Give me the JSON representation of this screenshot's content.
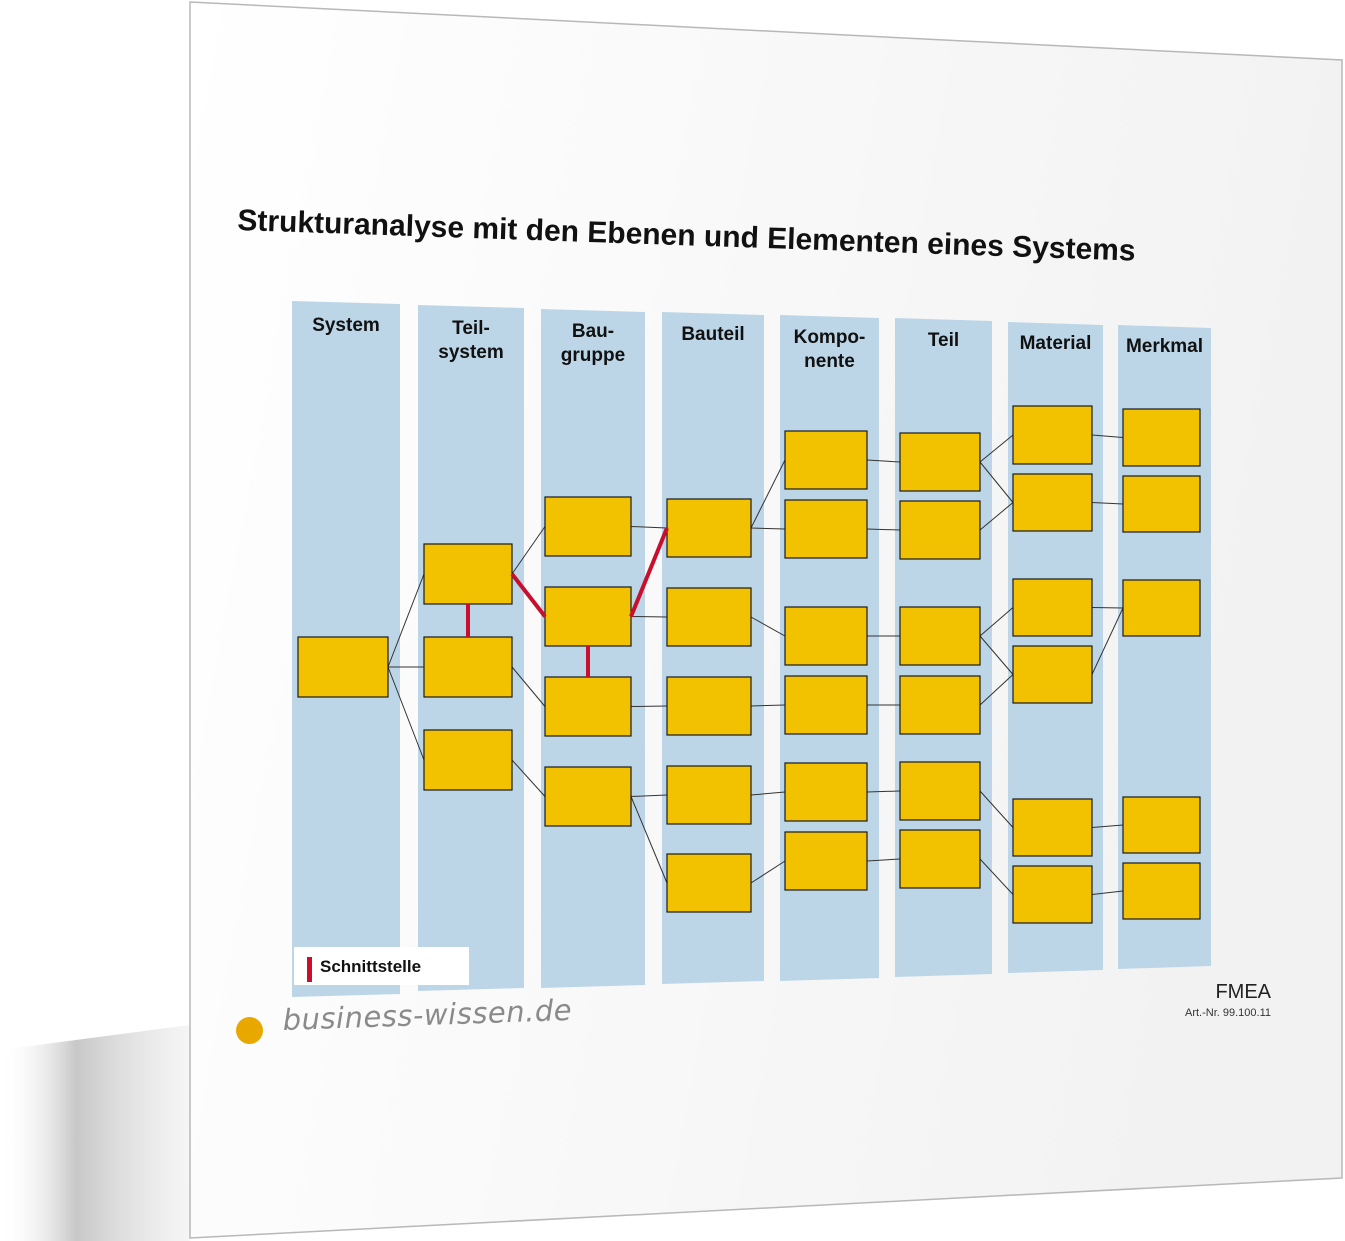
{
  "title": "Strukturanalyse mit den Ebenen und Elementen eines Systems",
  "columns": [
    {
      "id": "system",
      "label": "System"
    },
    {
      "id": "teilsystem",
      "label": "Teil-\nsystem"
    },
    {
      "id": "baugruppe",
      "label": "Bau-\ngruppe"
    },
    {
      "id": "bauteil",
      "label": "Bauteil"
    },
    {
      "id": "komponente",
      "label": "Kompo-\nnente"
    },
    {
      "id": "teil",
      "label": "Teil"
    },
    {
      "id": "material",
      "label": "Material"
    },
    {
      "id": "merkmal",
      "label": "Merkmal"
    }
  ],
  "legend": {
    "label": "Schnittstelle",
    "color": "#c8102e"
  },
  "footer": {
    "product": "FMEA",
    "article": "Art.-Nr. 99.100.11",
    "brand": "business-wissen.de",
    "brand_color": "#e8a800"
  },
  "colors": {
    "column_fill": "#bcd6e8",
    "box_fill": "#f2c200",
    "box_stroke": "#1a1a1a",
    "interface": "#c8102e"
  },
  "tree": {
    "nodes": [
      {
        "id": "S1",
        "column": "system"
      },
      {
        "id": "T1",
        "column": "teilsystem"
      },
      {
        "id": "T2",
        "column": "teilsystem"
      },
      {
        "id": "T3",
        "column": "teilsystem"
      },
      {
        "id": "B1",
        "column": "baugruppe"
      },
      {
        "id": "B2",
        "column": "baugruppe"
      },
      {
        "id": "B3",
        "column": "baugruppe"
      },
      {
        "id": "B4",
        "column": "baugruppe"
      },
      {
        "id": "BT1",
        "column": "bauteil"
      },
      {
        "id": "BT2",
        "column": "bauteil"
      },
      {
        "id": "BT3",
        "column": "bauteil"
      },
      {
        "id": "BT4",
        "column": "bauteil"
      },
      {
        "id": "BT5",
        "column": "bauteil"
      },
      {
        "id": "K1",
        "column": "komponente"
      },
      {
        "id": "K2",
        "column": "komponente"
      },
      {
        "id": "K3",
        "column": "komponente"
      },
      {
        "id": "K4",
        "column": "komponente"
      },
      {
        "id": "K5",
        "column": "komponente"
      },
      {
        "id": "K6",
        "column": "komponente"
      },
      {
        "id": "P1",
        "column": "teil"
      },
      {
        "id": "P2",
        "column": "teil"
      },
      {
        "id": "P3",
        "column": "teil"
      },
      {
        "id": "P4",
        "column": "teil"
      },
      {
        "id": "P5",
        "column": "teil"
      },
      {
        "id": "P6",
        "column": "teil"
      },
      {
        "id": "M1",
        "column": "material"
      },
      {
        "id": "M2",
        "column": "material"
      },
      {
        "id": "M3",
        "column": "material"
      },
      {
        "id": "M4",
        "column": "material"
      },
      {
        "id": "M5",
        "column": "material"
      },
      {
        "id": "M6",
        "column": "material"
      },
      {
        "id": "F1",
        "column": "merkmal"
      },
      {
        "id": "F2",
        "column": "merkmal"
      },
      {
        "id": "F3",
        "column": "merkmal"
      },
      {
        "id": "F4",
        "column": "merkmal"
      },
      {
        "id": "F5",
        "column": "merkmal"
      }
    ],
    "links": [
      [
        "S1",
        "T1"
      ],
      [
        "S1",
        "T2"
      ],
      [
        "S1",
        "T3"
      ],
      [
        "T1",
        "B1"
      ],
      [
        "T3",
        "B4"
      ],
      [
        "T2",
        "B3"
      ],
      [
        "B1",
        "BT1"
      ],
      [
        "B2",
        "BT2"
      ],
      [
        "B3",
        "BT3"
      ],
      [
        "B4",
        "BT4"
      ],
      [
        "B4",
        "BT5"
      ],
      [
        "BT1",
        "K1"
      ],
      [
        "BT1",
        "K2"
      ],
      [
        "BT2",
        "K3"
      ],
      [
        "BT3",
        "K4"
      ],
      [
        "BT4",
        "K5"
      ],
      [
        "BT5",
        "K6"
      ],
      [
        "K1",
        "P1"
      ],
      [
        "K2",
        "P2"
      ],
      [
        "K3",
        "P3"
      ],
      [
        "K4",
        "P4"
      ],
      [
        "K5",
        "P5"
      ],
      [
        "K6",
        "P6"
      ],
      [
        "P1",
        "M1"
      ],
      [
        "P1",
        "M2"
      ],
      [
        "P2",
        "M2"
      ],
      [
        "P3",
        "M3"
      ],
      [
        "P3",
        "M4"
      ],
      [
        "P4",
        "M4"
      ],
      [
        "P5",
        "M5"
      ],
      [
        "P6",
        "M6"
      ],
      [
        "M1",
        "F1"
      ],
      [
        "M2",
        "F2"
      ],
      [
        "M3",
        "F3"
      ],
      [
        "M4",
        "F3"
      ],
      [
        "M5",
        "F4"
      ],
      [
        "M6",
        "F5"
      ]
    ],
    "interfaces": [
      [
        "T1",
        "T2"
      ],
      [
        "T1",
        "B2"
      ],
      [
        "B2",
        "B3"
      ],
      [
        "B2",
        "BT1"
      ]
    ]
  }
}
